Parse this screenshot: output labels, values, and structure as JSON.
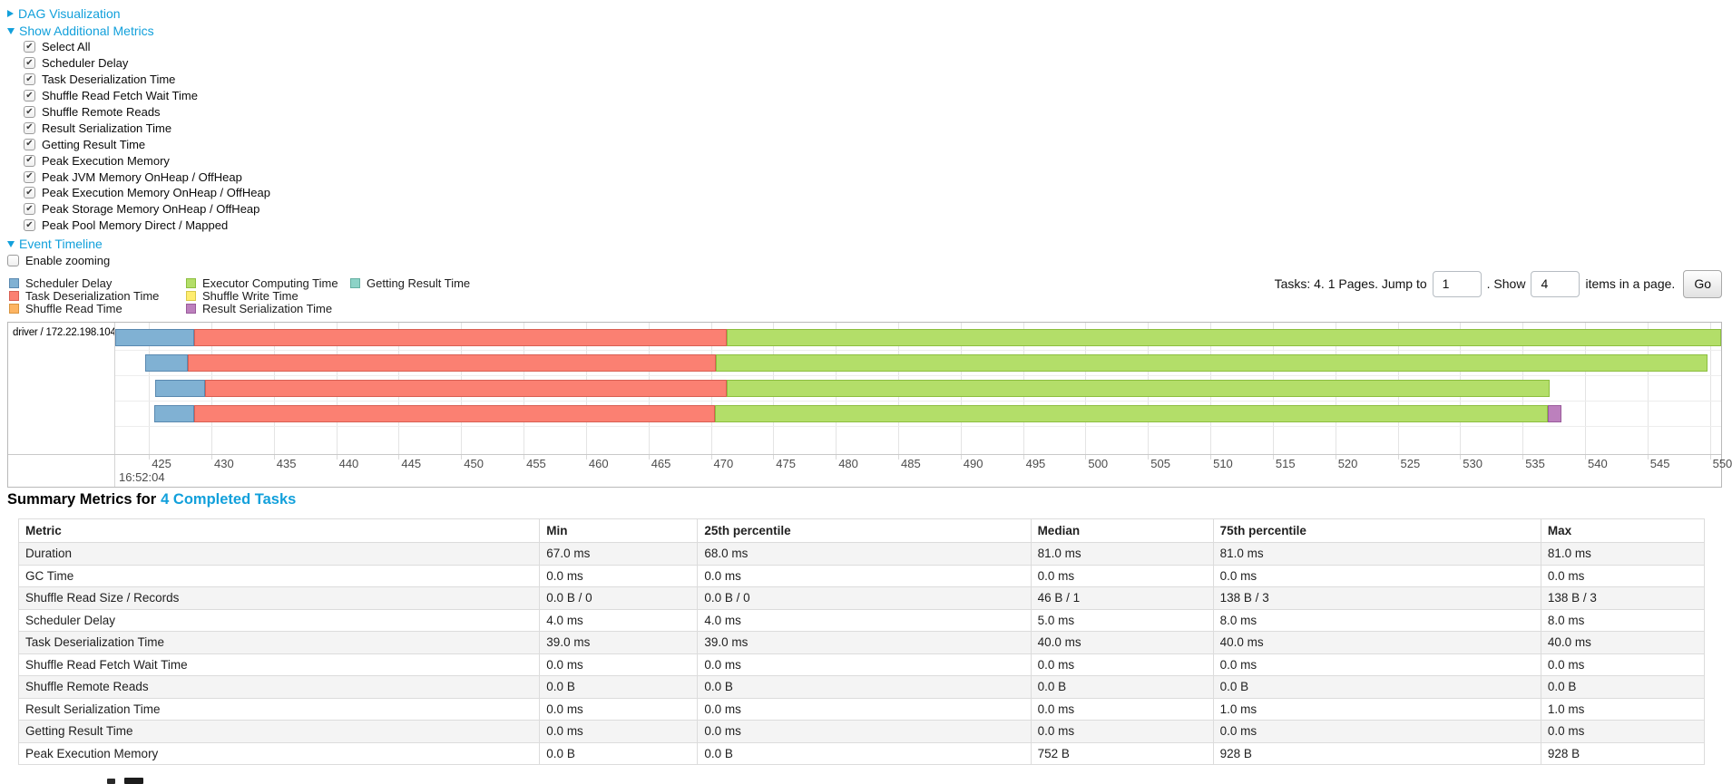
{
  "ui": {
    "link_color": "#12A0DB",
    "dag_section": {
      "label": "DAG Visualization",
      "state": "collapsed"
    },
    "metrics_section": {
      "label": "Show Additional Metrics",
      "state": "expanded",
      "checkboxes": [
        {
          "label": "Select All",
          "checked": true
        },
        {
          "label": "Scheduler Delay",
          "checked": true
        },
        {
          "label": "Task Deserialization Time",
          "checked": true
        },
        {
          "label": "Shuffle Read Fetch Wait Time",
          "checked": true
        },
        {
          "label": "Shuffle Remote Reads",
          "checked": true
        },
        {
          "label": "Result Serialization Time",
          "checked": true
        },
        {
          "label": "Getting Result Time",
          "checked": true
        },
        {
          "label": "Peak Execution Memory",
          "checked": true
        },
        {
          "label": "Peak JVM Memory OnHeap / OffHeap",
          "checked": true
        },
        {
          "label": "Peak Execution Memory OnHeap / OffHeap",
          "checked": true
        },
        {
          "label": "Peak Storage Memory OnHeap / OffHeap",
          "checked": true
        },
        {
          "label": "Peak Pool Memory Direct / Mapped",
          "checked": true
        }
      ]
    },
    "timeline_section": {
      "label": "Event Timeline",
      "state": "expanded",
      "enable_zooming": {
        "label": "Enable zooming",
        "checked": false
      }
    },
    "pagination": {
      "tasks_text": "Tasks: 4. 1 Pages. Jump to",
      "jump_input_value": "1",
      "show_text": ". Show",
      "show_input_value": "4",
      "suffix_text": "items in a page.",
      "go_button": "Go"
    },
    "summary_heading": {
      "prefix": "Summary Metrics for",
      "link": "4 Completed Tasks"
    }
  },
  "chart_data": [
    {
      "type": "timeline",
      "title": "Event Timeline",
      "group_label": "driver / 172.22.198.104",
      "legend": [
        {
          "label": "Scheduler Delay",
          "color": "#80B1D3",
          "border": "#5A89B0"
        },
        {
          "label": "Task Deserialization Time",
          "color": "#FB8072",
          "border": "#D85F53"
        },
        {
          "label": "Shuffle Read Time",
          "color": "#FDB462",
          "border": "#D89440"
        },
        {
          "label": "Executor Computing Time",
          "color": "#B3DE69",
          "border": "#8CBE3F"
        },
        {
          "label": "Shuffle Write Time",
          "color": "#FFED6F",
          "border": "#D9C84A"
        },
        {
          "label": "Result Serialization Time",
          "color": "#BC80BD",
          "border": "#9A5B9B"
        },
        {
          "label": "Getting Result Time",
          "color": "#8DD3C7",
          "border": "#65B0A2"
        }
      ],
      "axis": {
        "major_label": "16:52:04",
        "unit": "ms",
        "tick_start": 425,
        "tick_end": 550,
        "tick_step": 5,
        "domain_min": 422.3,
        "domain_max": 550.9
      },
      "tasks": [
        {
          "name": "task-row-1",
          "segments": [
            {
              "metric": "Scheduler Delay",
              "start": 422.3,
              "end": 428.6
            },
            {
              "metric": "Task Deserialization Time",
              "start": 428.6,
              "end": 471.3
            },
            {
              "metric": "Executor Computing Time",
              "start": 471.3,
              "end": 550.9
            }
          ]
        },
        {
          "name": "task-row-2",
          "segments": [
            {
              "metric": "Scheduler Delay",
              "start": 424.7,
              "end": 428.1
            },
            {
              "metric": "Task Deserialization Time",
              "start": 428.1,
              "end": 470.4
            },
            {
              "metric": "Executor Computing Time",
              "start": 470.4,
              "end": 549.8
            }
          ]
        },
        {
          "name": "task-row-3",
          "segments": [
            {
              "metric": "Scheduler Delay",
              "start": 425.5,
              "end": 429.5
            },
            {
              "metric": "Task Deserialization Time",
              "start": 429.5,
              "end": 471.3
            },
            {
              "metric": "Executor Computing Time",
              "start": 471.3,
              "end": 537.2
            }
          ]
        },
        {
          "name": "task-row-4",
          "segments": [
            {
              "metric": "Scheduler Delay",
              "start": 425.4,
              "end": 428.6
            },
            {
              "metric": "Task Deserialization Time",
              "start": 428.6,
              "end": 470.3
            },
            {
              "metric": "Executor Computing Time",
              "start": 470.3,
              "end": 537.0
            },
            {
              "metric": "Result Serialization Time",
              "start": 537.0,
              "end": 538.1
            }
          ]
        }
      ]
    },
    {
      "type": "table",
      "title": "Summary Metrics for 4 Completed Tasks",
      "headers": [
        "Metric",
        "Min",
        "25th percentile",
        "Median",
        "75th percentile",
        "Max"
      ],
      "rows": [
        [
          "Duration",
          "67.0 ms",
          "68.0 ms",
          "81.0 ms",
          "81.0 ms",
          "81.0 ms"
        ],
        [
          "GC Time",
          "0.0 ms",
          "0.0 ms",
          "0.0 ms",
          "0.0 ms",
          "0.0 ms"
        ],
        [
          "Shuffle Read Size / Records",
          "0.0 B / 0",
          "0.0 B / 0",
          "46 B / 1",
          "138 B / 3",
          "138 B / 3"
        ],
        [
          "Scheduler Delay",
          "4.0 ms",
          "4.0 ms",
          "5.0 ms",
          "8.0 ms",
          "8.0 ms"
        ],
        [
          "Task Deserialization Time",
          "39.0 ms",
          "39.0 ms",
          "40.0 ms",
          "40.0 ms",
          "40.0 ms"
        ],
        [
          "Shuffle Read Fetch Wait Time",
          "0.0 ms",
          "0.0 ms",
          "0.0 ms",
          "0.0 ms",
          "0.0 ms"
        ],
        [
          "Shuffle Remote Reads",
          "0.0 B",
          "0.0 B",
          "0.0 B",
          "0.0 B",
          "0.0 B"
        ],
        [
          "Result Serialization Time",
          "0.0 ms",
          "0.0 ms",
          "0.0 ms",
          "1.0 ms",
          "1.0 ms"
        ],
        [
          "Getting Result Time",
          "0.0 ms",
          "0.0 ms",
          "0.0 ms",
          "0.0 ms",
          "0.0 ms"
        ],
        [
          "Peak Execution Memory",
          "0.0 B",
          "0.0 B",
          "752 B",
          "928 B",
          "928 B"
        ]
      ]
    }
  ]
}
